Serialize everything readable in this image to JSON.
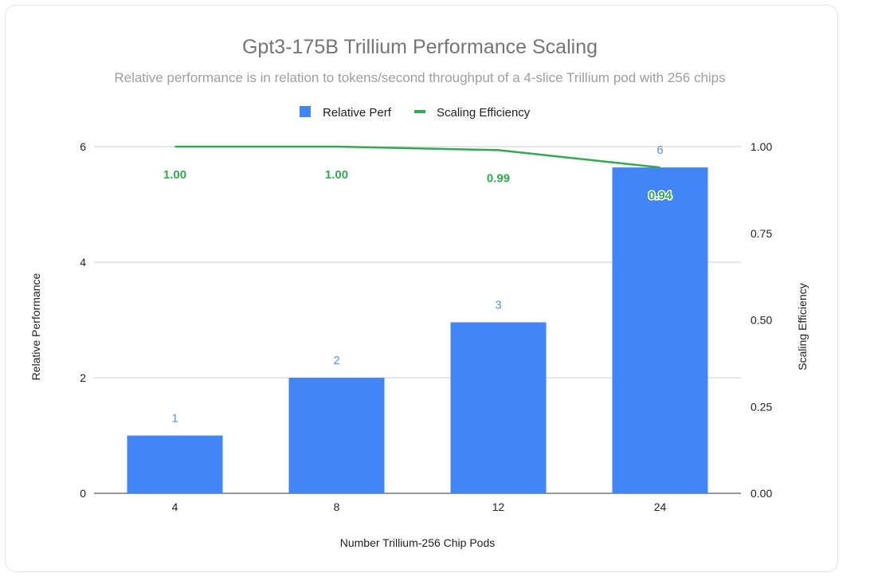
{
  "chart_data": {
    "type": "bar",
    "title": "Gpt3-175B Trillium Performance Scaling",
    "subtitle": "Relative performance is in relation to tokens/second throughput of a 4-slice Trillium pod with 256 chips",
    "xlabel": "Number Trillium-256 Chip Pods",
    "ylabel": "Relative Performance",
    "y2label": "Scaling Efficiency",
    "categories": [
      "4",
      "8",
      "12",
      "24"
    ],
    "series": [
      {
        "name": "Relative Perf",
        "type": "bar",
        "axis": "left",
        "color": "#4285f4",
        "values": [
          1.0,
          2.0,
          2.96,
          5.64
        ],
        "labels": [
          "1",
          "2",
          "3",
          "6"
        ]
      },
      {
        "name": "Scaling Efficiency",
        "type": "line",
        "axis": "right",
        "color": "#34a853",
        "values": [
          1.0,
          1.0,
          0.99,
          0.94
        ],
        "labels": [
          "1.00",
          "1.00",
          "0.99",
          "0.94"
        ]
      }
    ],
    "ylim": [
      0,
      6
    ],
    "y2lim": [
      0,
      1
    ],
    "yticks": [
      "0",
      "2",
      "4",
      "6"
    ],
    "y2ticks": [
      "0.00",
      "0.25",
      "0.50",
      "0.75",
      "1.00"
    ],
    "legend": "top-center",
    "grid": true
  }
}
